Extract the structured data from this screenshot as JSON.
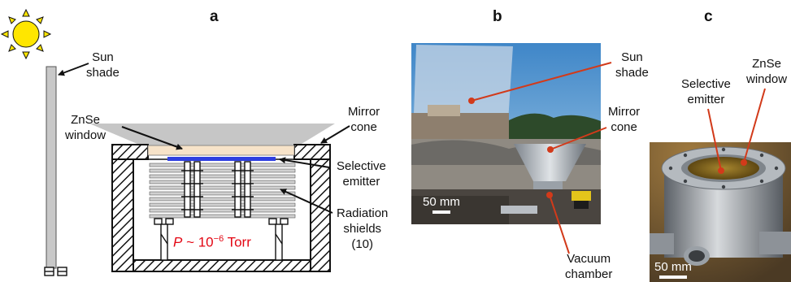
{
  "panels": {
    "a": "a",
    "b": "b",
    "c": "c"
  },
  "labels_a": {
    "sun_shade": [
      "Sun",
      "shade"
    ],
    "mirror_cone": [
      "Mirror",
      "cone"
    ],
    "znse_window": [
      "ZnSe",
      "window"
    ],
    "selective_emitter": [
      "Selective",
      "emitter"
    ],
    "radiation_shields": [
      "Radiation",
      "shields",
      "(10)"
    ],
    "pressure_symbol": "P",
    "pressure_value": " ~ 10",
    "pressure_exponent": "−6",
    "pressure_unit": " Torr"
  },
  "labels_b": {
    "sun_shade": [
      "Sun",
      "shade"
    ],
    "mirror_cone": [
      "Mirror",
      "cone"
    ],
    "vacuum_chamber": [
      "Vacuum",
      "chamber"
    ],
    "scale_bar": "50 mm"
  },
  "labels_c": {
    "znse_window": [
      "ZnSe",
      "window"
    ],
    "selective_emitter": [
      "Selective",
      "emitter"
    ],
    "scale_bar": "50 mm"
  },
  "colors": {
    "sun": "#ffe600",
    "emitter": "#2f3fe0",
    "window": "#f7e3c9",
    "pressure_text": "#e30613",
    "pointer_line": "#d23a1a"
  }
}
